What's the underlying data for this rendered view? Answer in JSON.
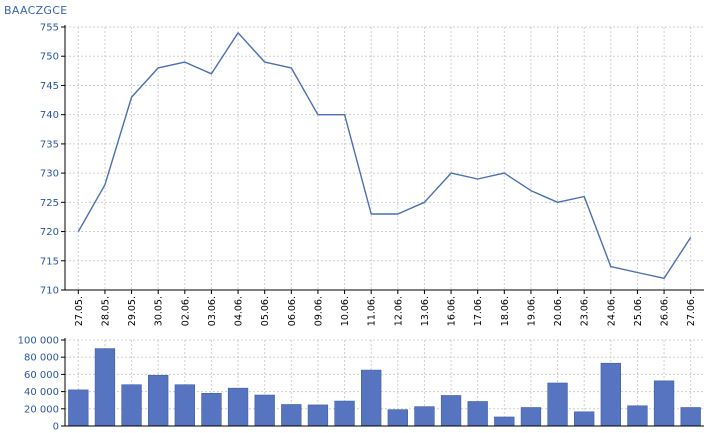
{
  "header": {
    "ticker": "BAACZGCE"
  },
  "chart_data": [
    {
      "type": "line",
      "x": [
        "27.05.",
        "28.05.",
        "29.05.",
        "30.05.",
        "02.06.",
        "03.06.",
        "04.06.",
        "05.06.",
        "06.06.",
        "09.06.",
        "10.06.",
        "11.06.",
        "12.06.",
        "13.06.",
        "16.06.",
        "17.06.",
        "18.06.",
        "19.06.",
        "20.06.",
        "23.06.",
        "24.06.",
        "25.06.",
        "26.06.",
        "27.06."
      ],
      "series": [
        {
          "values": [
            720,
            728,
            743,
            748,
            749,
            747,
            754,
            749,
            748,
            740,
            740,
            723,
            723,
            725,
            730,
            729,
            730,
            727,
            725,
            726,
            714,
            713,
            712,
            719
          ]
        }
      ],
      "yticks": [
        710,
        715,
        720,
        725,
        730,
        735,
        740,
        745,
        750,
        755
      ],
      "ytick_labels": [
        "710",
        "715",
        "720",
        "725",
        "730",
        "735",
        "740",
        "745",
        "750",
        "755"
      ],
      "ylim": [
        710,
        755
      ],
      "grid": true,
      "line_color": "#4a6fb5"
    },
    {
      "type": "bar",
      "categories": [
        "27.05.",
        "28.05.",
        "29.05.",
        "30.05.",
        "02.06.",
        "03.06.",
        "04.06.",
        "05.06.",
        "06.06.",
        "09.06.",
        "10.06.",
        "11.06.",
        "12.06.",
        "13.06.",
        "16.06.",
        "17.06.",
        "18.06.",
        "19.06.",
        "20.06.",
        "23.06.",
        "24.06.",
        "25.06.",
        "26.06.",
        "27.06."
      ],
      "values": [
        42000,
        90000,
        48000,
        59000,
        48000,
        38000,
        44000,
        36000,
        25000,
        24500,
        29000,
        65000,
        19000,
        22500,
        35500,
        28500,
        10500,
        21500,
        50000,
        16500,
        73000,
        23500,
        52500,
        21500
      ],
      "yticks": [
        0,
        20000,
        40000,
        60000,
        80000,
        100000
      ],
      "ytick_labels": [
        "0",
        "20 000",
        "40 000",
        "60 000",
        "80 000",
        "100 000"
      ],
      "ylim": [
        0,
        100000
      ],
      "grid": true,
      "bar_color": "#5674c0"
    }
  ]
}
